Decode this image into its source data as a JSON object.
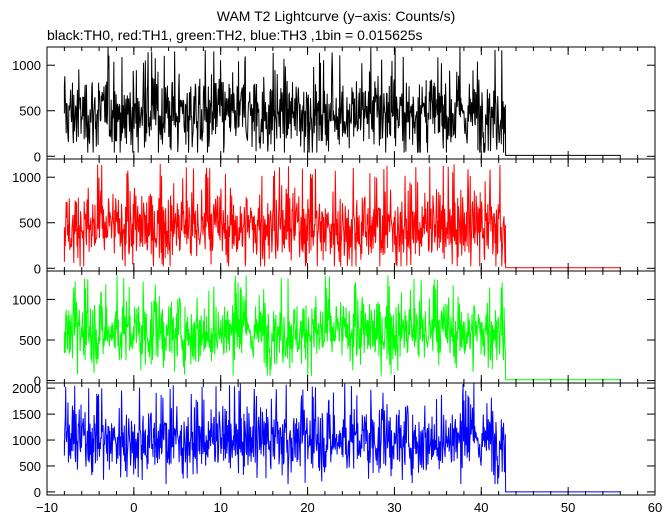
{
  "header": {
    "title": "WAM T2 Lightcurve (y−axis: Counts/s)",
    "subtitle": "black:TH0, red:TH1, green:TH2, blue:TH3 ,1bin = 0.015625s"
  },
  "chart_data": {
    "type": "line",
    "title": "WAM T2 Lightcurve (y−axis: Counts/s)",
    "subtitle": "black:TH0, red:TH1, green:TH2, blue:TH3 ,1bin = 0.015625s",
    "xlabel": "",
    "ylabel": "Counts/s",
    "bin_width_s": 0.015625,
    "xlim": [
      -10,
      60
    ],
    "x_ticks": [
      -10,
      0,
      10,
      20,
      30,
      40,
      50,
      60
    ],
    "x_tick_labels": [
      "−10",
      "0",
      "10",
      "20",
      "30",
      "40",
      "50",
      "60"
    ],
    "grid": false,
    "series": [
      {
        "name": "TH0",
        "color": "#000000",
        "ylim": [
          -30,
          1200
        ],
        "y_ticks": [
          0,
          500,
          1000
        ],
        "y_tick_labels": [
          "0",
          "500",
          "1000"
        ],
        "active_x": [
          -8,
          42.8
        ],
        "active_level": 470,
        "active_min": 40,
        "active_max": 1200,
        "tail_x": [
          42.8,
          56
        ],
        "tail_level": 10
      },
      {
        "name": "TH1",
        "color": "#ff0000",
        "ylim": [
          -30,
          1200
        ],
        "y_ticks": [
          0,
          500,
          1000
        ],
        "y_tick_labels": [
          "0",
          "500",
          "1000"
        ],
        "active_x": [
          -8,
          42.8
        ],
        "active_level": 450,
        "active_min": 20,
        "active_max": 1150,
        "tail_x": [
          42.8,
          56
        ],
        "tail_level": 5
      },
      {
        "name": "TH2",
        "color": "#00ff00",
        "ylim": [
          -30,
          1350
        ],
        "y_ticks": [
          0,
          500,
          1000
        ],
        "y_tick_labels": [
          "0",
          "500",
          "1000"
        ],
        "active_x": [
          -8,
          42.8
        ],
        "active_level": 600,
        "active_min": 60,
        "active_max": 1300,
        "tail_x": [
          42.8,
          56
        ],
        "tail_level": 10
      },
      {
        "name": "TH3",
        "color": "#0000ff",
        "ylim": [
          -60,
          2100
        ],
        "y_ticks": [
          0,
          500,
          1000,
          1500,
          2000
        ],
        "y_tick_labels": [
          "0",
          "500",
          "1000",
          "1500",
          "2000"
        ],
        "active_x": [
          -8,
          42.8
        ],
        "active_level": 1000,
        "active_min": 150,
        "active_max": 2100,
        "tail_x": [
          42.8,
          56
        ],
        "tail_level": 0
      }
    ]
  }
}
